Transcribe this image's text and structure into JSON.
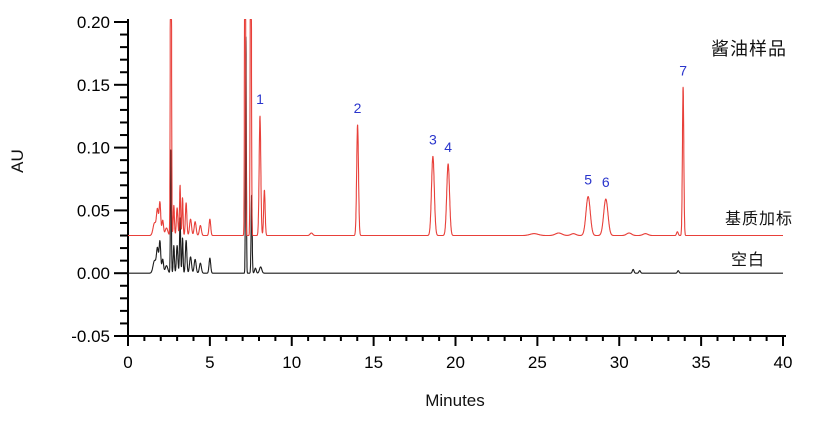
{
  "figure": {
    "title": "酱油样品",
    "x_axis_title": "Minutes",
    "y_axis_title": "AU",
    "series_labels": {
      "spiked": "基质加标",
      "blank": "空白"
    },
    "annotation_color": "#2a35cc",
    "axis_color": "#000000"
  },
  "chart_data": {
    "type": "line",
    "title": "酱油样品",
    "xlabel": "Minutes",
    "ylabel": "AU",
    "xlim": [
      0,
      40
    ],
    "ylim": [
      -0.05,
      0.2
    ],
    "grid": false,
    "x_major_ticks": [
      0,
      5,
      10,
      15,
      20,
      25,
      30,
      35,
      40
    ],
    "x_tick_labels": [
      "0",
      "5",
      "10",
      "15",
      "20",
      "25",
      "30",
      "35",
      "40"
    ],
    "x_minor_step": 1,
    "y_major_ticks": [
      -0.05,
      0.0,
      0.05,
      0.1,
      0.15,
      0.2
    ],
    "y_tick_labels": [
      "-0.05",
      "0.00",
      "0.05",
      "0.10",
      "0.15",
      "0.20"
    ],
    "y_minor_step": 0.01,
    "series": [
      {
        "name": "空白",
        "color": "#1c1c1c",
        "baseline_au": 0.0,
        "peaks_t_h_w": [
          [
            1.62,
            0.01,
            0.09
          ],
          [
            1.8,
            0.019,
            0.06
          ],
          [
            1.95,
            0.025,
            0.05
          ],
          [
            2.12,
            0.011,
            0.05
          ],
          [
            2.35,
            0.006,
            0.08
          ],
          [
            2.62,
            0.098,
            0.028
          ],
          [
            2.8,
            0.022,
            0.035
          ],
          [
            3.0,
            0.022,
            0.045
          ],
          [
            3.18,
            0.044,
            0.033
          ],
          [
            3.33,
            0.028,
            0.033
          ],
          [
            3.55,
            0.026,
            0.045
          ],
          [
            3.82,
            0.013,
            0.06
          ],
          [
            4.1,
            0.011,
            0.06
          ],
          [
            4.42,
            0.008,
            0.06
          ],
          [
            5.0,
            0.012,
            0.05
          ],
          [
            7.2,
            0.188,
            0.026
          ],
          [
            7.55,
            0.062,
            0.032
          ],
          [
            7.78,
            0.004,
            0.05
          ],
          [
            8.1,
            0.005,
            0.07
          ],
          [
            30.85,
            0.003,
            0.05
          ],
          [
            31.25,
            0.002,
            0.05
          ],
          [
            33.6,
            0.002,
            0.05
          ]
        ]
      },
      {
        "name": "基质加标",
        "color": "#e8403a",
        "baseline_au": 0.03,
        "peaks_t_h_w": [
          [
            1.62,
            0.01,
            0.09
          ],
          [
            1.8,
            0.02,
            0.06
          ],
          [
            1.95,
            0.026,
            0.05
          ],
          [
            2.12,
            0.012,
            0.05
          ],
          [
            2.35,
            0.006,
            0.08
          ],
          [
            2.62,
            0.4,
            0.03
          ],
          [
            2.8,
            0.024,
            0.035
          ],
          [
            3.0,
            0.022,
            0.045
          ],
          [
            3.18,
            0.04,
            0.033
          ],
          [
            3.33,
            0.03,
            0.033
          ],
          [
            3.55,
            0.026,
            0.045
          ],
          [
            3.82,
            0.013,
            0.06
          ],
          [
            4.1,
            0.011,
            0.06
          ],
          [
            4.42,
            0.008,
            0.06
          ],
          [
            5.0,
            0.013,
            0.05
          ],
          [
            7.15,
            0.4,
            0.028
          ],
          [
            7.5,
            0.4,
            0.03
          ],
          [
            8.06,
            0.095,
            0.05
          ],
          [
            8.33,
            0.036,
            0.045
          ],
          [
            11.2,
            0.002,
            0.08
          ],
          [
            14.02,
            0.088,
            0.055
          ],
          [
            18.62,
            0.063,
            0.085
          ],
          [
            19.55,
            0.057,
            0.085
          ],
          [
            24.8,
            0.0015,
            0.25
          ],
          [
            26.3,
            0.002,
            0.2
          ],
          [
            27.2,
            0.0015,
            0.15
          ],
          [
            28.1,
            0.031,
            0.13
          ],
          [
            29.18,
            0.029,
            0.13
          ],
          [
            30.6,
            0.002,
            0.15
          ],
          [
            31.6,
            0.0015,
            0.15
          ],
          [
            33.55,
            0.003,
            0.05
          ],
          [
            33.9,
            0.118,
            0.042
          ]
        ]
      }
    ],
    "numbered_peaks": [
      {
        "num": "1",
        "rt_min": 8.06,
        "apex_au": 0.125
      },
      {
        "num": "2",
        "rt_min": 14.02,
        "apex_au": 0.118
      },
      {
        "num": "3",
        "rt_min": 18.62,
        "apex_au": 0.093
      },
      {
        "num": "4",
        "rt_min": 19.55,
        "apex_au": 0.087
      },
      {
        "num": "5",
        "rt_min": 28.1,
        "apex_au": 0.061
      },
      {
        "num": "6",
        "rt_min": 29.18,
        "apex_au": 0.059
      },
      {
        "num": "7",
        "rt_min": 33.9,
        "apex_au": 0.148
      }
    ]
  }
}
